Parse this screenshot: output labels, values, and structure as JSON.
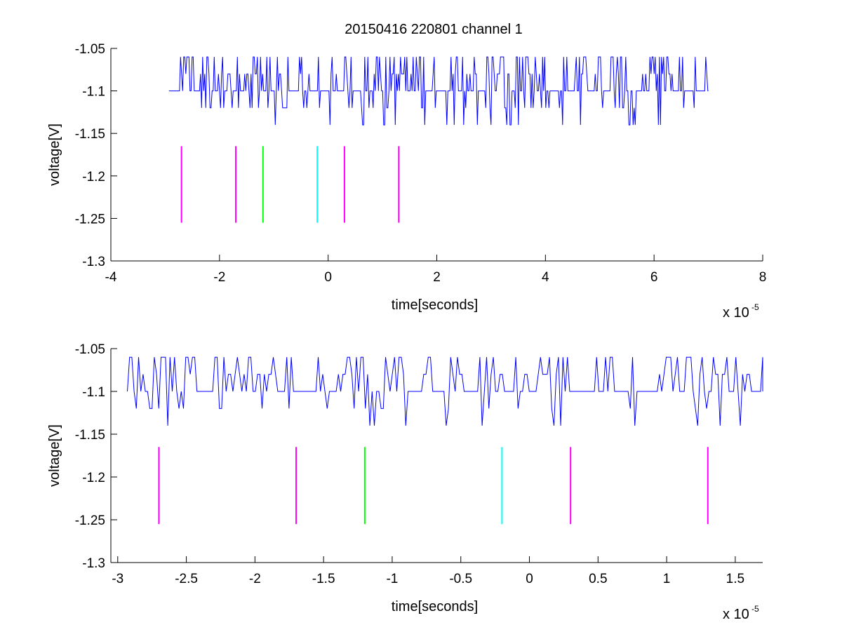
{
  "figure": {
    "title": "20150416 220801 channel 1"
  },
  "chart_data": [
    {
      "type": "line",
      "xlabel": "time[seconds]",
      "ylabel": "voltage[V]",
      "x_exponent_label": "x 10",
      "x_exponent": "-5",
      "xlim": [
        -4,
        8
      ],
      "ylim": [
        -1.3,
        -1.05
      ],
      "xticks": [
        -4,
        -2,
        0,
        2,
        4,
        6,
        8
      ],
      "xtick_labels": [
        "-4",
        "-2",
        "0",
        "2",
        "4",
        "6",
        "8"
      ],
      "yticks": [
        -1.05,
        -1.1,
        -1.15,
        -1.2,
        -1.25,
        -1.3
      ],
      "ytick_labels": [
        "-1.05",
        "-1.1",
        "-1.15",
        "-1.2",
        "-1.25",
        "-1.3"
      ],
      "grid": false,
      "signal": {
        "color": "#0000ff",
        "x_range": [
          -2.93,
          7.0
        ],
        "levels": [
          -1.06,
          -1.08,
          -1.1,
          -1.12,
          -1.14
        ],
        "baseline": -1.1
      },
      "markers": [
        {
          "x": -2.7,
          "color": "#ff00ff"
        },
        {
          "x": -1.7,
          "color": "#ff00ff"
        },
        {
          "x": -1.2,
          "color": "#00ff00"
        },
        {
          "x": -0.2,
          "color": "#00ffff"
        },
        {
          "x": 0.3,
          "color": "#ff00ff"
        },
        {
          "x": 1.3,
          "color": "#ff00ff"
        }
      ],
      "marker_y_range": [
        -1.255,
        -1.165
      ]
    },
    {
      "type": "line",
      "xlabel": "time[seconds]",
      "ylabel": "voltage[V]",
      "x_exponent_label": "x 10",
      "x_exponent": "-5",
      "xlim": [
        -3.05,
        1.7
      ],
      "ylim": [
        -1.3,
        -1.05
      ],
      "xticks": [
        -3,
        -2.5,
        -2,
        -1.5,
        -1,
        -0.5,
        0,
        0.5,
        1,
        1.5
      ],
      "xtick_labels": [
        "-3",
        "-2.5",
        "-2",
        "-1.5",
        "-1",
        "-0.5",
        "0",
        "0.5",
        "1",
        "1.5"
      ],
      "yticks": [
        -1.05,
        -1.1,
        -1.15,
        -1.2,
        -1.25,
        -1.3
      ],
      "ytick_labels": [
        "-1.05",
        "-1.1",
        "-1.15",
        "-1.2",
        "-1.25",
        "-1.3"
      ],
      "grid": false,
      "signal": {
        "color": "#0000ff",
        "x_range": [
          -2.93,
          1.7
        ],
        "levels": [
          -1.06,
          -1.08,
          -1.1,
          -1.12,
          -1.14
        ],
        "baseline": -1.1
      },
      "markers": [
        {
          "x": -2.7,
          "color": "#ff00ff"
        },
        {
          "x": -1.7,
          "color": "#ff00ff"
        },
        {
          "x": -1.2,
          "color": "#00ff00"
        },
        {
          "x": -0.2,
          "color": "#00ffff"
        },
        {
          "x": 0.3,
          "color": "#ff00ff"
        },
        {
          "x": 1.3,
          "color": "#ff00ff"
        }
      ],
      "marker_y_range": [
        -1.255,
        -1.165
      ]
    }
  ]
}
